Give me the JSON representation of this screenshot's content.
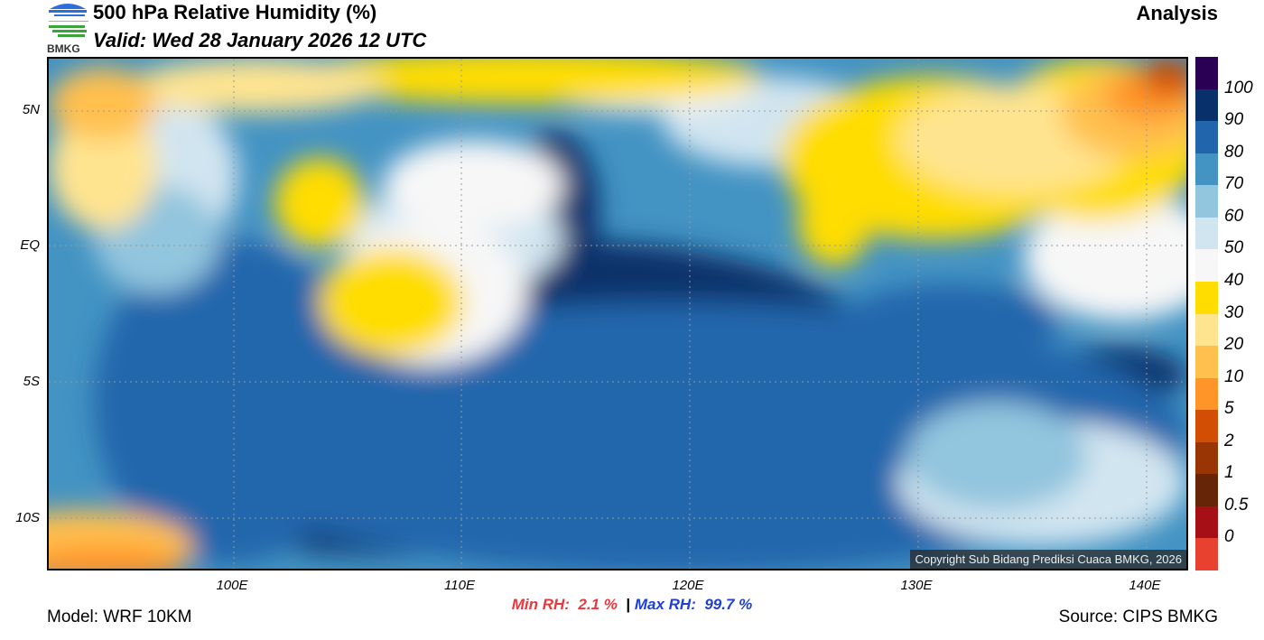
{
  "header": {
    "title": "500 hPa Relative Humidity (%)",
    "valid": "Valid: Wed 28 January 2026 12 UTC",
    "type": "Analysis",
    "logo_text": "BMKG"
  },
  "map": {
    "lat_labels": [
      "5N",
      "EQ",
      "5S",
      "10S"
    ],
    "lon_labels": [
      "100E",
      "110E",
      "120E",
      "130E",
      "140E"
    ],
    "copyright": "Copyright Sub Bidang Prediksi Cuaca BMKG, 2026"
  },
  "colorbar": {
    "labels": [
      "100",
      "90",
      "80",
      "70",
      "60",
      "50",
      "40",
      "30",
      "20",
      "10",
      "5",
      "2",
      "1",
      "0.5",
      "0"
    ],
    "colors": [
      "#2a0054",
      "#08306b",
      "#2166ac",
      "#4393c3",
      "#92c5de",
      "#d1e5f0",
      "#f7f7f7",
      "#ffdd00",
      "#ffe490",
      "#ffc04d",
      "#ff9529",
      "#d24e05",
      "#993404",
      "#662506",
      "#a50f15",
      "#e8412f"
    ]
  },
  "footer": {
    "min_label": "Min RH:",
    "min_value": "2.1 %",
    "separator": "|",
    "max_label": "Max RH:",
    "max_value": "99.7 %",
    "model": "Model: WRF 10KM",
    "source": "Source: CIPS BMKG"
  }
}
